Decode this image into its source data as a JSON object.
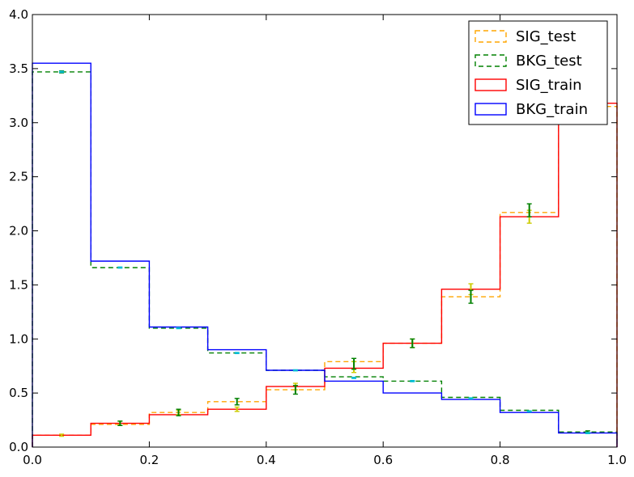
{
  "chart_data": {
    "type": "histogram-step",
    "bin_edges": [
      0.0,
      0.1,
      0.2,
      0.3,
      0.4,
      0.5,
      0.6,
      0.7,
      0.8,
      0.9,
      1.0
    ],
    "xlim": [
      0.0,
      1.0
    ],
    "ylim": [
      0.0,
      4.0
    ],
    "xticks": [
      "0.0",
      "0.2",
      "0.4",
      "0.6",
      "0.8",
      "1.0"
    ],
    "yticks": [
      "0.0",
      "0.5",
      "1.0",
      "1.5",
      "2.0",
      "2.5",
      "3.0",
      "3.5",
      "4.0"
    ],
    "xtick_values": [
      0.0,
      0.2,
      0.4,
      0.6,
      0.8,
      1.0
    ],
    "ytick_values": [
      0.0,
      0.5,
      1.0,
      1.5,
      2.0,
      2.5,
      3.0,
      3.5,
      4.0
    ],
    "legend_position": "top-right",
    "series": [
      {
        "name": "SIG_test",
        "style": "dashed",
        "color": "#ffa500",
        "values": [
          0.11,
          0.21,
          0.32,
          0.42,
          0.53,
          0.79,
          0.96,
          1.39,
          2.17,
          3.15
        ],
        "errorbar_points": [
          0.11,
          0.22,
          0.32,
          0.35,
          0.56,
          0.74,
          0.96,
          1.46,
          2.13,
          3.15
        ],
        "errors": [
          0.01,
          0.02,
          0.02,
          0.02,
          0.03,
          0.05,
          0.04,
          0.05,
          0.06,
          0.08
        ],
        "errorbar_color": "#cccc00"
      },
      {
        "name": "BKG_test",
        "style": "dashed",
        "color": "#008000",
        "values": [
          3.47,
          1.66,
          1.1,
          0.87,
          0.71,
          0.65,
          0.61,
          0.46,
          0.34,
          0.14
        ],
        "errorbar_points": [
          3.47,
          0.22,
          0.32,
          0.42,
          0.53,
          0.77,
          0.96,
          1.39,
          2.19,
          0.14
        ],
        "errors": [
          0.01,
          0.02,
          0.03,
          0.03,
          0.04,
          0.05,
          0.04,
          0.06,
          0.06,
          0.01
        ],
        "errorbar_color": "#008000"
      },
      {
        "name": "SIG_train",
        "style": "solid",
        "color": "#ff0000",
        "values": [
          0.11,
          0.22,
          0.3,
          0.35,
          0.56,
          0.73,
          0.96,
          1.46,
          2.13,
          3.18
        ]
      },
      {
        "name": "BKG_train",
        "style": "solid",
        "color": "#0000ff",
        "values": [
          3.55,
          1.72,
          1.11,
          0.9,
          0.71,
          0.61,
          0.5,
          0.44,
          0.32,
          0.13
        ],
        "errorbar_points": [
          3.47,
          1.66,
          1.1,
          0.87,
          0.71,
          0.64,
          0.61,
          0.45,
          0.33,
          0.13
        ],
        "errors": [
          0.005,
          0.005,
          0.005,
          0.005,
          0.005,
          0.005,
          0.005,
          0.005,
          0.005,
          0.005
        ],
        "errorbar_color": "#00bcd4"
      }
    ]
  }
}
